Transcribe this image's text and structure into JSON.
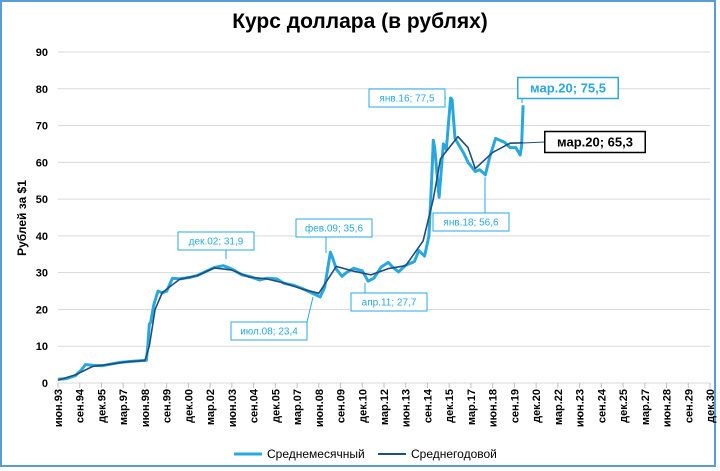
{
  "chart_data": {
    "type": "line",
    "title": "Курс доллара (в рублях)",
    "xlabel": "",
    "ylabel": "Рублей за $1",
    "ylim": [
      0,
      90
    ],
    "yticks": [
      0,
      10,
      20,
      30,
      40,
      50,
      60,
      70,
      80,
      90
    ],
    "grid": true,
    "legend_position": "bottom",
    "x_tick_labels": [
      "июн.93",
      "сен.94",
      "дек.95",
      "мар.97",
      "июн.98",
      "сен.99",
      "дек.00",
      "мар.02",
      "июн.03",
      "сен.04",
      "дек.05",
      "мар.07",
      "июн.08",
      "сен.09",
      "дек.10",
      "мар.12",
      "июн.13",
      "сен.14",
      "дек.15",
      "мар.17",
      "июн.18",
      "сен.19",
      "дек.20",
      "мар.22",
      "июн.23",
      "сен.24",
      "дек.25",
      "мар.27",
      "июн.28",
      "сен.29",
      "дек.30"
    ],
    "series": [
      {
        "name": "Среднемесячный",
        "color": "#29a8e0",
        "points": [
          [
            "1993-06",
            1.0
          ],
          [
            "1993-12",
            1.2
          ],
          [
            "1994-06",
            2.0
          ],
          [
            "1994-10",
            3.5
          ],
          [
            "1995-01",
            5.0
          ],
          [
            "1995-06",
            4.8
          ],
          [
            "1996-01",
            4.7
          ],
          [
            "1996-06",
            5.1
          ],
          [
            "1997-01",
            5.6
          ],
          [
            "1997-06",
            5.8
          ],
          [
            "1998-01",
            6.0
          ],
          [
            "1998-07",
            6.2
          ],
          [
            "1998-08",
            10.0
          ],
          [
            "1998-09",
            16.0
          ],
          [
            "1998-10",
            16.5
          ],
          [
            "1998-12",
            21.0
          ],
          [
            "1999-01",
            22.5
          ],
          [
            "1999-03",
            25.0
          ],
          [
            "1999-06",
            24.5
          ],
          [
            "1999-09",
            25.0
          ],
          [
            "2000-01",
            28.5
          ],
          [
            "2000-06",
            28.3
          ],
          [
            "2001-01",
            28.7
          ],
          [
            "2001-06",
            29.2
          ],
          [
            "2002-01",
            30.5
          ],
          [
            "2002-06",
            31.4
          ],
          [
            "2002-12",
            31.9
          ],
          [
            "2003-06",
            31.0
          ],
          [
            "2004-01",
            29.4
          ],
          [
            "2004-06",
            29.0
          ],
          [
            "2005-01",
            28.0
          ],
          [
            "2005-06",
            28.5
          ],
          [
            "2006-01",
            28.3
          ],
          [
            "2006-06",
            27.1
          ],
          [
            "2007-01",
            26.5
          ],
          [
            "2007-06",
            25.8
          ],
          [
            "2008-01",
            24.5
          ],
          [
            "2008-07",
            23.4
          ],
          [
            "2008-10",
            26.0
          ],
          [
            "2009-01",
            33.0
          ],
          [
            "2009-02",
            35.6
          ],
          [
            "2009-04",
            33.5
          ],
          [
            "2009-06",
            31.0
          ],
          [
            "2009-10",
            29.0
          ],
          [
            "2010-01",
            30.0
          ],
          [
            "2010-06",
            31.2
          ],
          [
            "2010-12",
            30.5
          ],
          [
            "2011-04",
            27.7
          ],
          [
            "2011-08",
            28.5
          ],
          [
            "2012-01",
            31.5
          ],
          [
            "2012-06",
            32.8
          ],
          [
            "2012-09",
            31.5
          ],
          [
            "2013-01",
            30.2
          ],
          [
            "2013-06",
            32.0
          ],
          [
            "2013-12",
            33.0
          ],
          [
            "2014-03",
            36.0
          ],
          [
            "2014-07",
            34.5
          ],
          [
            "2014-10",
            40.0
          ],
          [
            "2014-12",
            56.0
          ],
          [
            "2015-01",
            66.0
          ],
          [
            "2015-02",
            64.0
          ],
          [
            "2015-05",
            50.5
          ],
          [
            "2015-08",
            65.0
          ],
          [
            "2015-10",
            63.5
          ],
          [
            "2016-01",
            77.5
          ],
          [
            "2016-02",
            77.0
          ],
          [
            "2016-04",
            66.5
          ],
          [
            "2016-07",
            64.5
          ],
          [
            "2016-10",
            62.5
          ],
          [
            "2017-01",
            60.0
          ],
          [
            "2017-06",
            57.5
          ],
          [
            "2017-09",
            58.0
          ],
          [
            "2018-01",
            56.6
          ],
          [
            "2018-04",
            61.5
          ],
          [
            "2018-08",
            66.5
          ],
          [
            "2018-11",
            66.0
          ],
          [
            "2019-02",
            65.5
          ],
          [
            "2019-06",
            64.0
          ],
          [
            "2019-10",
            64.0
          ],
          [
            "2020-01",
            62.0
          ],
          [
            "2020-02",
            64.5
          ],
          [
            "2020-03",
            75.5
          ]
        ]
      },
      {
        "name": "Среднегодовой",
        "color": "#1f4e79",
        "points": [
          [
            "1993-06",
            0.8
          ],
          [
            "1994-06",
            2.2
          ],
          [
            "1995-06",
            4.5
          ],
          [
            "1996-06",
            5.1
          ],
          [
            "1997-06",
            5.8
          ],
          [
            "1998-06",
            6.1
          ],
          [
            "1998-09",
            10.0
          ],
          [
            "1999-01",
            20.0
          ],
          [
            "1999-06",
            24.6
          ],
          [
            "2000-06",
            28.2
          ],
          [
            "2001-06",
            29.2
          ],
          [
            "2002-06",
            31.3
          ],
          [
            "2003-06",
            30.7
          ],
          [
            "2004-06",
            28.8
          ],
          [
            "2005-06",
            28.3
          ],
          [
            "2006-06",
            27.2
          ],
          [
            "2007-06",
            25.6
          ],
          [
            "2008-06",
            24.4
          ],
          [
            "2009-06",
            31.7
          ],
          [
            "2010-06",
            30.4
          ],
          [
            "2011-06",
            29.4
          ],
          [
            "2012-06",
            31.1
          ],
          [
            "2013-06",
            31.9
          ],
          [
            "2014-06",
            38.6
          ],
          [
            "2015-01",
            50.0
          ],
          [
            "2015-06",
            61.0
          ],
          [
            "2016-06",
            67.0
          ],
          [
            "2017-01",
            64.0
          ],
          [
            "2017-06",
            58.3
          ],
          [
            "2018-06",
            62.7
          ],
          [
            "2019-06",
            65.2
          ],
          [
            "2020-03",
            65.3
          ]
        ]
      }
    ],
    "annotations": [
      {
        "label": "дек.02; 31,9",
        "series": "Среднемесячный"
      },
      {
        "label": "июл.08; 23,4",
        "series": "Среднемесячный"
      },
      {
        "label": "фев.09; 35,6",
        "series": "Среднемесячный"
      },
      {
        "label": "апр.11; 27,7",
        "series": "Среднемесячный"
      },
      {
        "label": "янв.16; 77,5",
        "series": "Среднемесячный"
      },
      {
        "label": "янв.18; 56,6",
        "series": "Среднемесячный"
      },
      {
        "label": "мар.20; 75,5",
        "series": "Среднемесячный"
      },
      {
        "label": "мар.20; 65,3",
        "series": "Среднегодовой"
      }
    ]
  }
}
